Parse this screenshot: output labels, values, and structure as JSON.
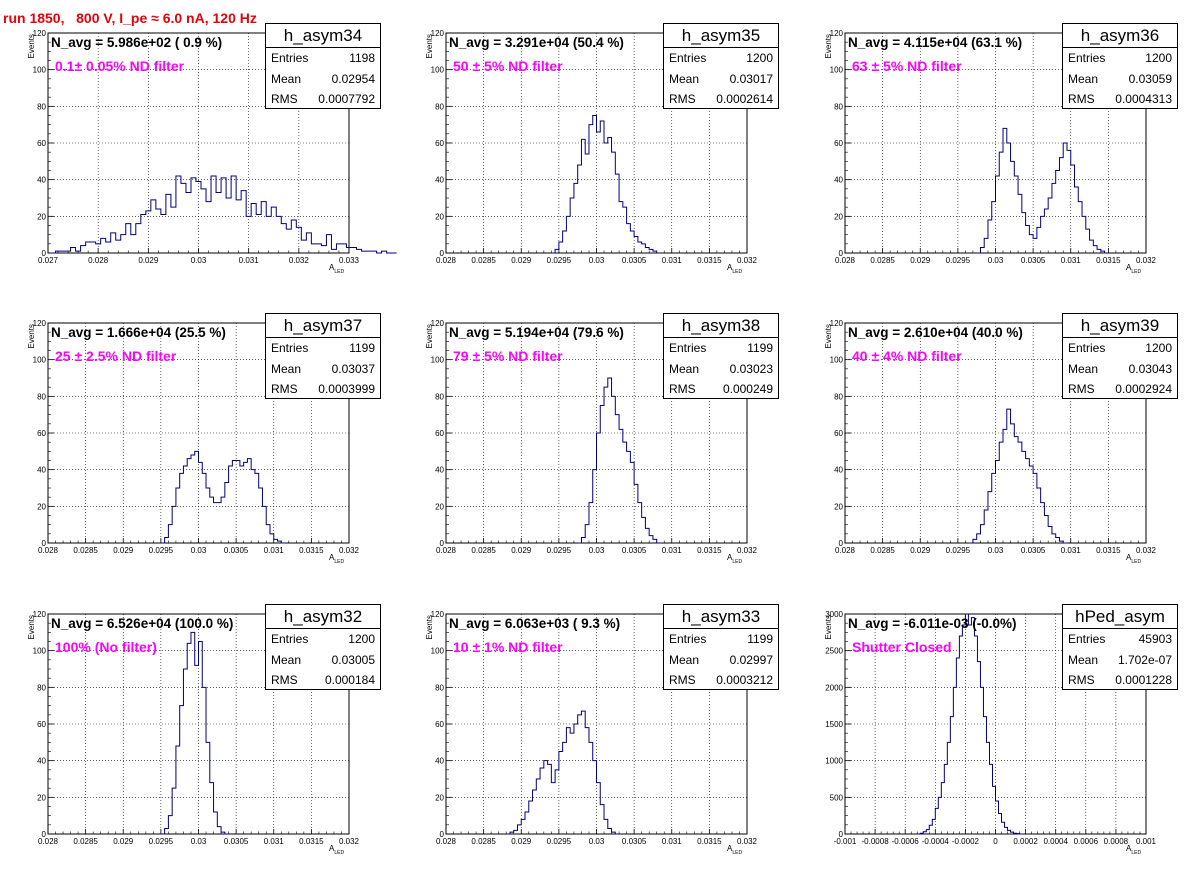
{
  "title": "run 1850,   800 V, I_pe ≈ 6.0 nA, 120 Hz",
  "colors": {
    "title": "#e8000b",
    "filter_text": "#ff00ff",
    "histogram_line": "#00007f",
    "grid": "#000000"
  },
  "chart_data": [
    {
      "type": "histogram",
      "hist_name": "h_asym34",
      "navg_text": "N_avg = 5.986e+02 ( 0.9 %)",
      "filter_text": "0.1± 0.05% ND filter",
      "stats": {
        "entries": "1198",
        "mean": "0.02954",
        "rms": "0.0007792"
      },
      "xlim": [
        0.027,
        0.033
      ],
      "ylim": [
        0,
        120
      ],
      "xticks": [
        "0.027",
        "0.028",
        "0.029",
        "0.03",
        "0.031",
        "0.032",
        "0.033"
      ],
      "xtick_values": [
        0.027,
        0.028,
        0.029,
        0.03,
        0.031,
        0.032,
        0.033
      ],
      "yticks": [
        "0",
        "20",
        "40",
        "60",
        "80",
        "100",
        "120"
      ],
      "ytick_values": [
        0,
        20,
        40,
        60,
        80,
        100,
        120
      ],
      "xlabel": "A",
      "xlabel_sub": "LED",
      "ylabel": "Events",
      "x_start": 0.02705,
      "bin_width": 0.0001,
      "values": [
        0,
        1,
        1,
        1,
        3,
        1,
        4,
        6,
        6,
        5,
        8,
        6,
        11,
        7,
        10,
        16,
        10,
        16,
        21,
        23,
        29,
        24,
        21,
        32,
        25,
        42,
        38,
        33,
        41,
        39,
        35,
        28,
        42,
        33,
        41,
        30,
        42,
        29,
        34,
        20,
        27,
        21,
        28,
        20,
        25,
        20,
        16,
        13,
        18,
        14,
        7,
        11,
        5,
        5,
        4,
        10,
        2,
        5,
        5,
        3,
        3,
        2,
        1,
        1,
        1,
        0,
        1,
        0,
        0
      ]
    },
    {
      "type": "histogram",
      "hist_name": "h_asym35",
      "navg_text": "N_avg = 3.291e+04 (50.4 %)",
      "filter_text": "50 ± 5% ND filter",
      "stats": {
        "entries": "1200",
        "mean": "0.03017",
        "rms": "0.0002614"
      },
      "xlim": [
        0.028,
        0.032
      ],
      "ylim": [
        0,
        120
      ],
      "xticks": [
        "0.028",
        "0.0285",
        "0.029",
        "0.0295",
        "0.03",
        "0.0305",
        "0.031",
        "0.0315",
        "0.032"
      ],
      "xtick_values": [
        0.028,
        0.0285,
        0.029,
        0.0295,
        0.03,
        0.0305,
        0.031,
        0.0315,
        0.032
      ],
      "yticks": [
        "0",
        "20",
        "40",
        "60",
        "80",
        "100",
        "120"
      ],
      "ytick_values": [
        0,
        20,
        40,
        60,
        80,
        100,
        120
      ],
      "xlabel": "A",
      "xlabel_sub": "LED",
      "ylabel": "Events",
      "x_start": 0.0294,
      "bin_width": 5e-05,
      "values": [
        0,
        2,
        6,
        12,
        20,
        30,
        38,
        48,
        62,
        54,
        70,
        75,
        66,
        72,
        60,
        63,
        55,
        43,
        28,
        25,
        16,
        12,
        9,
        6,
        5,
        3,
        2,
        1,
        0
      ]
    },
    {
      "type": "histogram",
      "hist_name": "h_asym36",
      "navg_text": "N_avg = 4.115e+04 (63.1 %)",
      "filter_text": "63 ± 5% ND filter",
      "stats": {
        "entries": "1200",
        "mean": "0.03059",
        "rms": "0.0004313"
      },
      "xlim": [
        0.028,
        0.032
      ],
      "ylim": [
        0,
        120
      ],
      "xticks": [
        "0.028",
        "0.0285",
        "0.029",
        "0.0295",
        "0.03",
        "0.0305",
        "0.031",
        "0.0315",
        "0.032"
      ],
      "xtick_values": [
        0.028,
        0.0285,
        0.029,
        0.0295,
        0.03,
        0.0305,
        0.031,
        0.0315,
        0.032
      ],
      "yticks": [
        "0",
        "20",
        "40",
        "60",
        "80",
        "100",
        "120"
      ],
      "ytick_values": [
        0,
        20,
        40,
        60,
        80,
        100,
        120
      ],
      "xlabel": "A",
      "xlabel_sub": "LED",
      "ylabel": "Events",
      "x_start": 0.02975,
      "bin_width": 5e-05,
      "values": [
        0,
        3,
        8,
        18,
        28,
        42,
        55,
        68,
        60,
        50,
        42,
        32,
        22,
        15,
        10,
        8,
        14,
        20,
        24,
        30,
        38,
        45,
        52,
        60,
        56,
        48,
        36,
        28,
        20,
        13,
        7,
        4,
        2,
        1,
        0
      ]
    },
    {
      "type": "histogram",
      "hist_name": "h_asym37",
      "navg_text": "N_avg = 1.666e+04 (25.5 %)",
      "filter_text": "25 ± 2.5% ND filter",
      "stats": {
        "entries": "1199",
        "mean": "0.03037",
        "rms": "0.0003999"
      },
      "xlim": [
        0.028,
        0.032
      ],
      "ylim": [
        0,
        120
      ],
      "xticks": [
        "0.028",
        "0.0285",
        "0.029",
        "0.0295",
        "0.03",
        "0.0305",
        "0.031",
        "0.0315",
        "0.032"
      ],
      "xtick_values": [
        0.028,
        0.0285,
        0.029,
        0.0295,
        0.03,
        0.0305,
        0.031,
        0.0315,
        0.032
      ],
      "yticks": [
        "0",
        "20",
        "40",
        "60",
        "80",
        "100",
        "120"
      ],
      "ytick_values": [
        0,
        20,
        40,
        60,
        80,
        100,
        120
      ],
      "xlabel": "A",
      "xlabel_sub": "LED",
      "ylabel": "Events",
      "x_start": 0.0295,
      "bin_width": 5e-05,
      "values": [
        0,
        3,
        10,
        20,
        30,
        38,
        42,
        46,
        48,
        50,
        44,
        38,
        30,
        25,
        22,
        22,
        25,
        33,
        42,
        45,
        45,
        42,
        44,
        46,
        40,
        38,
        30,
        20,
        10,
        5,
        2,
        1,
        0
      ]
    },
    {
      "type": "histogram",
      "hist_name": "h_asym38",
      "navg_text": "N_avg = 5.194e+04 (79.6 %)",
      "filter_text": "79 ± 5% ND filter",
      "stats": {
        "entries": "1199",
        "mean": "0.03023",
        "rms": "0.000249"
      },
      "xlim": [
        0.028,
        0.032
      ],
      "ylim": [
        0,
        120
      ],
      "xticks": [
        "0.028",
        "0.0285",
        "0.029",
        "0.0295",
        "0.03",
        "0.0305",
        "0.031",
        "0.0315",
        "0.032"
      ],
      "xtick_values": [
        0.028,
        0.0285,
        0.029,
        0.0295,
        0.03,
        0.0305,
        0.031,
        0.0315,
        0.032
      ],
      "yticks": [
        "0",
        "20",
        "40",
        "60",
        "80",
        "100",
        "120"
      ],
      "ytick_values": [
        0,
        20,
        40,
        60,
        80,
        100,
        120
      ],
      "xlabel": "A",
      "xlabel_sub": "LED",
      "ylabel": "Events",
      "x_start": 0.02975,
      "bin_width": 5e-05,
      "values": [
        0,
        3,
        10,
        22,
        40,
        60,
        75,
        85,
        90,
        80,
        70,
        62,
        55,
        50,
        44,
        32,
        22,
        14,
        8,
        4,
        2,
        0
      ]
    },
    {
      "type": "histogram",
      "hist_name": "h_asym39",
      "navg_text": "N_avg = 2.610e+04 (40.0 %)",
      "filter_text": "40 ± 4% ND filter",
      "stats": {
        "entries": "1200",
        "mean": "0.03043",
        "rms": "0.0002924"
      },
      "xlim": [
        0.028,
        0.032
      ],
      "ylim": [
        0,
        120
      ],
      "xticks": [
        "0.028",
        "0.0285",
        "0.029",
        "0.0295",
        "0.03",
        "0.0305",
        "0.031",
        "0.0315",
        "0.032"
      ],
      "xtick_values": [
        0.028,
        0.0285,
        0.029,
        0.0295,
        0.03,
        0.0305,
        0.031,
        0.0315,
        0.032
      ],
      "yticks": [
        "0",
        "20",
        "40",
        "60",
        "80",
        "100",
        "120"
      ],
      "ytick_values": [
        0,
        20,
        40,
        60,
        80,
        100,
        120
      ],
      "xlabel": "A",
      "xlabel_sub": "LED",
      "ylabel": "Events",
      "x_start": 0.02965,
      "bin_width": 5e-05,
      "values": [
        0,
        2,
        5,
        10,
        18,
        28,
        38,
        45,
        55,
        62,
        73,
        65,
        58,
        55,
        50,
        46,
        42,
        38,
        30,
        22,
        15,
        9,
        5,
        3,
        1,
        0
      ]
    },
    {
      "type": "histogram",
      "hist_name": "h_asym32",
      "navg_text": "N_avg = 6.526e+04 (100.0 %)",
      "filter_text": "100% (No filter)",
      "stats": {
        "entries": "1200",
        "mean": "0.03005",
        "rms": "0.000184"
      },
      "xlim": [
        0.028,
        0.032
      ],
      "ylim": [
        0,
        120
      ],
      "xticks": [
        "0.028",
        "0.0285",
        "0.029",
        "0.0295",
        "0.03",
        "0.0305",
        "0.031",
        "0.0315",
        "0.032"
      ],
      "xtick_values": [
        0.028,
        0.0285,
        0.029,
        0.0295,
        0.03,
        0.0305,
        0.031,
        0.0315,
        0.032
      ],
      "yticks": [
        "0",
        "20",
        "40",
        "60",
        "80",
        "100",
        "120"
      ],
      "ytick_values": [
        0,
        20,
        40,
        60,
        80,
        100,
        120
      ],
      "xlabel": "A",
      "xlabel_sub": "LED",
      "ylabel": "Events",
      "x_start": 0.0295,
      "bin_width": 5e-05,
      "values": [
        0,
        3,
        10,
        25,
        48,
        70,
        90,
        104,
        110,
        92,
        105,
        80,
        50,
        28,
        12,
        4,
        1,
        0
      ]
    },
    {
      "type": "histogram",
      "hist_name": "h_asym33",
      "navg_text": "N_avg = 6.063e+03 ( 9.3 %)",
      "filter_text": "10 ± 1% ND filter",
      "stats": {
        "entries": "1199",
        "mean": "0.02997",
        "rms": "0.0003212"
      },
      "xlim": [
        0.028,
        0.032
      ],
      "ylim": [
        0,
        120
      ],
      "xticks": [
        "0.028",
        "0.0285",
        "0.029",
        "0.0295",
        "0.03",
        "0.0305",
        "0.031",
        "0.0315",
        "0.032"
      ],
      "xtick_values": [
        0.028,
        0.0285,
        0.029,
        0.0295,
        0.03,
        0.0305,
        0.031,
        0.0315,
        0.032
      ],
      "yticks": [
        "0",
        "20",
        "40",
        "60",
        "80",
        "100",
        "120"
      ],
      "ytick_values": [
        0,
        20,
        40,
        60,
        80,
        100,
        120
      ],
      "xlabel": "A",
      "xlabel_sub": "LED",
      "ylabel": "Events",
      "x_start": 0.0288,
      "bin_width": 5e-05,
      "values": [
        0,
        1,
        2,
        5,
        8,
        12,
        18,
        24,
        30,
        36,
        40,
        38,
        28,
        35,
        45,
        50,
        58,
        55,
        60,
        65,
        67,
        58,
        50,
        40,
        28,
        16,
        8,
        3,
        1,
        0
      ]
    },
    {
      "type": "histogram",
      "hist_name": "hPed_asym",
      "navg_text": "N_avg = -6.011e-03 (-0.0%)",
      "filter_text": "Shutter Closed",
      "stats": {
        "entries": "45903",
        "mean": "1.702e-07",
        "rms": "0.0001228"
      },
      "xlim": [
        -0.001,
        0.001
      ],
      "ylim": [
        0,
        3000
      ],
      "xticks": [
        "-0.001",
        "-0.0008",
        "-0.0006",
        "-0.0004",
        "-0.0002",
        "0",
        "0.0002",
        "0.0004",
        "0.0006",
        "0.0008",
        "0.001"
      ],
      "xtick_values": [
        -0.001,
        -0.0008,
        -0.0006,
        -0.0004,
        -0.0002,
        0,
        0.0002,
        0.0004,
        0.0006,
        0.0008,
        0.001
      ],
      "yticks": [
        "0",
        "500",
        "1000",
        "1500",
        "2000",
        "2500",
        "3000"
      ],
      "ytick_values": [
        0,
        500,
        1000,
        1500,
        2000,
        2500,
        3000
      ],
      "xlabel": "A",
      "xlabel_sub": "LED",
      "ylabel": "Events",
      "x_start": -0.00052,
      "bin_width": 2e-05,
      "values": [
        0,
        10,
        30,
        60,
        120,
        200,
        350,
        500,
        700,
        950,
        1250,
        1600,
        2000,
        2400,
        2700,
        2850,
        3050,
        2850,
        2950,
        2700,
        2350,
        2000,
        1600,
        1250,
        950,
        650,
        450,
        280,
        160,
        90,
        50,
        25,
        10,
        5,
        0
      ]
    }
  ]
}
